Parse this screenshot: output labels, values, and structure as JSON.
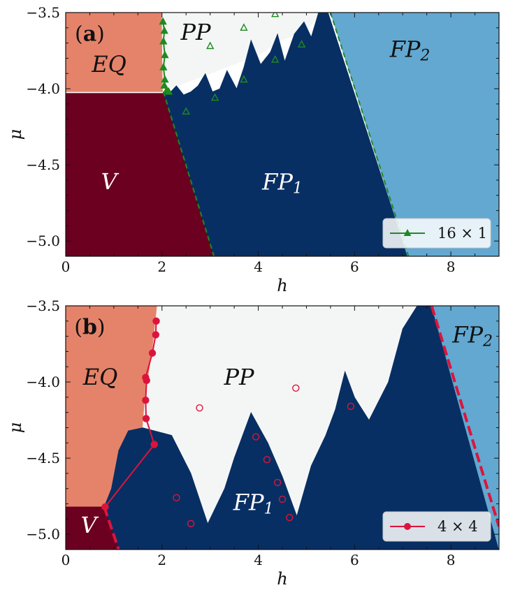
{
  "colors": {
    "EQ": "#e5836a",
    "V": "#6b0020",
    "PP": "#f4f6f6",
    "FP1": "#082f63",
    "FP2": "#62a8d1",
    "green": "#1f8a1f",
    "crimson": "#dc143c"
  },
  "chart_data": [
    {
      "type": "area",
      "panel_label": "(a)",
      "xlabel": "h",
      "ylabel": "μ",
      "xlim": [
        0,
        9
      ],
      "ylim": [
        -5.1,
        -3.5
      ],
      "x_ticks": [
        "0",
        "2",
        "4",
        "6",
        "8"
      ],
      "y_ticks": [
        "−3.5",
        "−4.0",
        "−4.5",
        "−5.0"
      ],
      "regions": [
        {
          "name": "EQ",
          "label_pos": [
            0.9,
            -3.85
          ],
          "color_key": "EQ",
          "text_fill": "#111111",
          "polygon": [
            [
              0,
              -3.5
            ],
            [
              1.99,
              -3.5
            ],
            [
              2.01,
              -4.02
            ],
            [
              0,
              -4.02
            ]
          ]
        },
        {
          "name": "V",
          "label_pos": [
            0.9,
            -4.62
          ],
          "color_key": "V",
          "text_fill": "#ffffff",
          "polygon": [
            [
              0,
              -4.03
            ],
            [
              2.03,
              -4.03
            ],
            [
              3.08,
              -5.1
            ],
            [
              0,
              -5.1
            ]
          ]
        },
        {
          "name": "PP",
          "label_pos": [
            2.7,
            -3.64
          ],
          "color_key": "PP",
          "text_fill": "#111111",
          "polygon": [
            [
              2.0,
              -3.5
            ],
            [
              5.3,
              -3.5
            ],
            [
              5.0,
              -3.62
            ],
            [
              4.5,
              -3.68
            ],
            [
              4.0,
              -3.78
            ],
            [
              3.5,
              -3.84
            ],
            [
              3.0,
              -3.9
            ],
            [
              2.5,
              -3.96
            ],
            [
              2.05,
              -4.02
            ]
          ]
        },
        {
          "name": "FP1",
          "label_pos": [
            4.5,
            -4.62
          ],
          "color_key": "FP1",
          "text_fill": "#ffffff",
          "polygon": [
            [
              2.02,
              -4.02
            ],
            [
              2.15,
              -4.03
            ],
            [
              2.3,
              -3.98
            ],
            [
              2.45,
              -4.04
            ],
            [
              2.6,
              -4.02
            ],
            [
              2.75,
              -3.98
            ],
            [
              2.9,
              -3.9
            ],
            [
              3.05,
              -4.02
            ],
            [
              3.2,
              -4.0
            ],
            [
              3.35,
              -3.88
            ],
            [
              3.55,
              -4.0
            ],
            [
              3.7,
              -3.86
            ],
            [
              3.85,
              -3.68
            ],
            [
              4.05,
              -3.84
            ],
            [
              4.25,
              -3.76
            ],
            [
              4.4,
              -3.64
            ],
            [
              4.55,
              -3.82
            ],
            [
              4.75,
              -3.64
            ],
            [
              4.95,
              -3.56
            ],
            [
              5.1,
              -3.66
            ],
            [
              5.25,
              -3.5
            ],
            [
              5.45,
              -3.5
            ],
            [
              7.1,
              -5.1
            ],
            [
              3.08,
              -5.1
            ]
          ]
        },
        {
          "name": "FP2",
          "label_pos": [
            7.15,
            -3.75
          ],
          "color_key": "FP2",
          "text_fill": "#111111",
          "polygon": [
            [
              5.5,
              -3.5
            ],
            [
              9,
              -3.5
            ],
            [
              9,
              -5.1
            ],
            [
              7.1,
              -5.1
            ]
          ]
        }
      ],
      "dashed_lines": [
        {
          "color_key": "green",
          "x": [
            2.03,
            3.08
          ],
          "y": [
            -4.02,
            -5.1
          ]
        },
        {
          "color_key": "green",
          "x": [
            5.5,
            7.12
          ],
          "y": [
            -3.5,
            -5.1
          ]
        }
      ],
      "series": [
        {
          "name": "16 × 1",
          "color_key": "green",
          "marker": "triangle-filled",
          "x": [
            2.02,
            2.05,
            2.03,
            2.06,
            2.03,
            2.06,
            2.05,
            2.1,
            2.14
          ],
          "y": [
            -3.56,
            -3.62,
            -3.69,
            -3.78,
            -3.86,
            -3.94,
            -3.98,
            -4.01,
            -4.02
          ]
        },
        {
          "name": "",
          "color_key": "green",
          "marker": "triangle-open",
          "x": [
            2.5,
            3.0,
            3.1,
            3.7,
            3.7,
            4.35,
            4.35,
            4.9
          ],
          "y": [
            -4.15,
            -3.72,
            -4.06,
            -3.6,
            -3.94,
            -3.51,
            -3.81,
            -3.71
          ]
        }
      ],
      "legend": {
        "position": "lower-right",
        "label": "16 × 1"
      }
    },
    {
      "type": "area",
      "panel_label": "(b)",
      "xlabel": "h",
      "ylabel": "μ",
      "xlim": [
        0,
        9
      ],
      "ylim": [
        -5.1,
        -3.5
      ],
      "x_ticks": [
        "0",
        "2",
        "4",
        "6",
        "8"
      ],
      "y_ticks": [
        "−3.5",
        "−4.0",
        "−4.5",
        "−5.0"
      ],
      "regions": [
        {
          "name": "EQ",
          "label_pos": [
            0.72,
            -3.98
          ],
          "color_key": "EQ",
          "text_fill": "#111111",
          "polygon": [
            [
              0,
              -3.5
            ],
            [
              1.9,
              -3.5
            ],
            [
              1.8,
              -3.8
            ],
            [
              1.65,
              -4.1
            ],
            [
              1.6,
              -4.3
            ],
            [
              1.3,
              -4.32
            ],
            [
              1.1,
              -4.45
            ],
            [
              0.95,
              -4.7
            ],
            [
              0.8,
              -4.82
            ],
            [
              0,
              -4.82
            ]
          ]
        },
        {
          "name": "V",
          "label_pos": [
            0.48,
            -4.95
          ],
          "color_key": "V",
          "text_fill": "#ffffff",
          "polygon": [
            [
              0,
              -4.82
            ],
            [
              0.8,
              -4.82
            ],
            [
              1.1,
              -5.1
            ],
            [
              0,
              -5.1
            ]
          ]
        },
        {
          "name": "PP",
          "label_pos": [
            3.6,
            -3.98
          ],
          "color_key": "PP",
          "text_fill": "#111111",
          "polygon": [
            [
              1.9,
              -3.5
            ],
            [
              7.3,
              -3.5
            ],
            [
              7.0,
              -3.65
            ],
            [
              6.7,
              -4.0
            ],
            [
              6.3,
              -4.25
            ],
            [
              6.0,
              -4.1
            ],
            [
              5.8,
              -3.93
            ],
            [
              5.6,
              -4.18
            ],
            [
              5.4,
              -4.35
            ],
            [
              5.1,
              -4.55
            ],
            [
              4.8,
              -4.88
            ],
            [
              4.5,
              -4.62
            ],
            [
              4.2,
              -4.4
            ],
            [
              3.85,
              -4.2
            ],
            [
              3.5,
              -4.5
            ],
            [
              3.3,
              -4.7
            ],
            [
              2.95,
              -4.93
            ],
            [
              2.6,
              -4.6
            ],
            [
              2.2,
              -4.35
            ],
            [
              1.6,
              -4.3
            ],
            [
              1.65,
              -4.1
            ],
            [
              1.8,
              -3.8
            ]
          ]
        },
        {
          "name": "FP1",
          "label_pos": [
            3.9,
            -4.8
          ],
          "color_key": "FP1",
          "text_fill": "#ffffff",
          "polygon": [
            [
              0.8,
              -4.82
            ],
            [
              0.95,
              -4.7
            ],
            [
              1.1,
              -4.45
            ],
            [
              1.3,
              -4.32
            ],
            [
              1.6,
              -4.3
            ],
            [
              2.2,
              -4.35
            ],
            [
              2.6,
              -4.6
            ],
            [
              2.95,
              -4.93
            ],
            [
              3.3,
              -4.7
            ],
            [
              3.5,
              -4.5
            ],
            [
              3.85,
              -4.2
            ],
            [
              4.2,
              -4.4
            ],
            [
              4.5,
              -4.62
            ],
            [
              4.8,
              -4.88
            ],
            [
              5.1,
              -4.55
            ],
            [
              5.4,
              -4.35
            ],
            [
              5.6,
              -4.18
            ],
            [
              5.8,
              -3.93
            ],
            [
              6.0,
              -4.1
            ],
            [
              6.3,
              -4.25
            ],
            [
              6.7,
              -4.0
            ],
            [
              7.0,
              -3.65
            ],
            [
              7.3,
              -3.5
            ],
            [
              7.6,
              -3.5
            ],
            [
              9,
              -5.1
            ],
            [
              1.1,
              -5.1
            ]
          ]
        },
        {
          "name": "FP2",
          "label_pos": [
            8.45,
            -3.7
          ],
          "color_key": "FP2",
          "text_fill": "#111111",
          "polygon": [
            [
              7.6,
              -3.5
            ],
            [
              9,
              -3.5
            ],
            [
              9,
              -5.1
            ]
          ]
        }
      ],
      "dashed_lines": [
        {
          "color_key": "crimson",
          "x": [
            0.8,
            1.1
          ],
          "y": [
            -4.82,
            -5.1
          ]
        },
        {
          "color_key": "crimson",
          "x": [
            7.6,
            9.0
          ],
          "y": [
            -3.5,
            -4.95
          ]
        }
      ],
      "series": [
        {
          "name": "4 × 4",
          "color_key": "crimson",
          "marker": "circle-filled",
          "x": [
            0.82,
            1.84,
            1.67,
            1.66,
            1.68,
            1.66,
            1.8,
            1.87,
            1.88
          ],
          "y": [
            -4.82,
            -4.41,
            -4.24,
            -4.12,
            -3.99,
            -3.97,
            -3.81,
            -3.69,
            -3.6
          ]
        },
        {
          "name": "",
          "color_key": "crimson",
          "marker": "circle-open",
          "x": [
            2.78,
            4.78,
            5.92,
            3.95,
            4.18,
            4.4,
            4.5,
            4.65,
            2.3,
            2.6
          ],
          "y": [
            -4.17,
            -4.04,
            -4.16,
            -4.36,
            -4.51,
            -4.66,
            -4.77,
            -4.89,
            -4.76,
            -4.93
          ]
        }
      ],
      "legend": {
        "position": "lower-right",
        "label": "4 × 4"
      }
    }
  ]
}
